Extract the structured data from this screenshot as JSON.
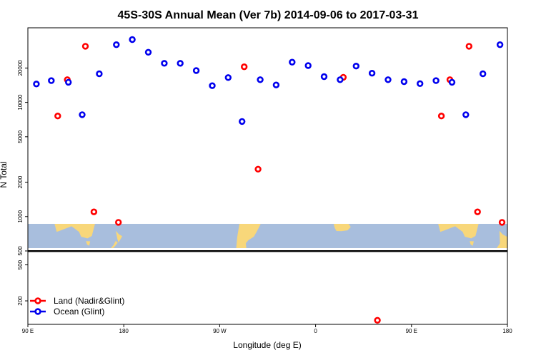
{
  "chart_data": {
    "type": "scatter",
    "title": "45S-30S Annual Mean (Ver 7b)   2014-09-06 to 2017-03-31",
    "xlabel": "Longitude (deg E)",
    "ylabel": "N Total",
    "x_range": [
      90,
      540
    ],
    "x_ticks": [
      {
        "value": 90,
        "label": "90 E"
      },
      {
        "value": 180,
        "label": "180"
      },
      {
        "value": 270,
        "label": "90 W"
      },
      {
        "value": 360,
        "label": "0"
      },
      {
        "value": 450,
        "label": "90 E"
      },
      {
        "value": 540,
        "label": "180"
      }
    ],
    "upper_panel": {
      "y_scale": "log",
      "y_range": [
        500,
        45000
      ],
      "y_ticks": [
        {
          "value": 500,
          "label": "500"
        },
        {
          "value": 1000,
          "label": "1000"
        },
        {
          "value": 2000,
          "label": "2000"
        },
        {
          "value": 5000,
          "label": "5000"
        },
        {
          "value": 10000,
          "label": "10000"
        },
        {
          "value": 20000,
          "label": "20000"
        }
      ]
    },
    "lower_panel": {
      "y_scale": "log",
      "y_range": [
        110,
        700
      ],
      "y_ticks": [
        {
          "value": 200,
          "label": "200"
        },
        {
          "value": 500,
          "label": "500"
        }
      ]
    },
    "map_strip": {
      "lat_range": [
        -45,
        -30
      ],
      "ocean_color": "#a8bedd",
      "land_color": "#f8d77a"
    },
    "legend": {
      "placement": "bottom-left"
    },
    "series": [
      {
        "name": "Land (Nadir&Glint)",
        "color": "#ff0000",
        "points": [
          {
            "x": 118,
            "y": 7600
          },
          {
            "x": 127,
            "y": 15800
          },
          {
            "x": 144,
            "y": 31000
          },
          {
            "x": 152,
            "y": 1100
          },
          {
            "x": 175,
            "y": 890
          },
          {
            "x": 293,
            "y": 20500
          },
          {
            "x": 306,
            "y": 2600
          },
          {
            "x": 386,
            "y": 16600
          },
          {
            "x": 418,
            "y": 122
          },
          {
            "x": 478,
            "y": 7600
          },
          {
            "x": 486,
            "y": 15800
          },
          {
            "x": 504,
            "y": 31000
          },
          {
            "x": 512,
            "y": 1100
          },
          {
            "x": 535,
            "y": 890
          }
        ]
      },
      {
        "name": "Ocean (Glint)",
        "color": "#0000ee",
        "points": [
          {
            "x": 98,
            "y": 14500
          },
          {
            "x": 112,
            "y": 15500
          },
          {
            "x": 128,
            "y": 15000
          },
          {
            "x": 141,
            "y": 7800
          },
          {
            "x": 157,
            "y": 17800
          },
          {
            "x": 173,
            "y": 32000
          },
          {
            "x": 188,
            "y": 35500
          },
          {
            "x": 203,
            "y": 27500
          },
          {
            "x": 218,
            "y": 22000
          },
          {
            "x": 233,
            "y": 22000
          },
          {
            "x": 248,
            "y": 19000
          },
          {
            "x": 263,
            "y": 14000
          },
          {
            "x": 278,
            "y": 16500
          },
          {
            "x": 291,
            "y": 6800
          },
          {
            "x": 308,
            "y": 15800
          },
          {
            "x": 323,
            "y": 14200
          },
          {
            "x": 338,
            "y": 22500
          },
          {
            "x": 353,
            "y": 21000
          },
          {
            "x": 368,
            "y": 16800
          },
          {
            "x": 383,
            "y": 15800
          },
          {
            "x": 398,
            "y": 20800
          },
          {
            "x": 413,
            "y": 18000
          },
          {
            "x": 428,
            "y": 15800
          },
          {
            "x": 443,
            "y": 15200
          },
          {
            "x": 458,
            "y": 14600
          },
          {
            "x": 473,
            "y": 15500
          },
          {
            "x": 488,
            "y": 15000
          },
          {
            "x": 501,
            "y": 7800
          },
          {
            "x": 517,
            "y": 17800
          },
          {
            "x": 533,
            "y": 32000
          }
        ]
      }
    ]
  }
}
